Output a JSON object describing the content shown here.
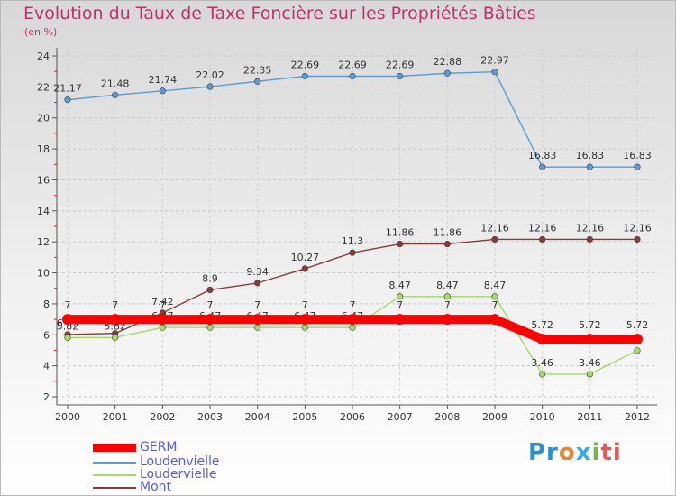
{
  "chart_data": {
    "type": "line",
    "title": "Evolution du Taux de Taxe Foncière sur les Propriétés Bâties",
    "subtitle": "(en %)",
    "x": [
      "2000",
      "2001",
      "2002",
      "2003",
      "2004",
      "2005",
      "2006",
      "2007",
      "2008",
      "2009",
      "2010",
      "2011",
      "2012"
    ],
    "ylim": [
      2,
      24
    ],
    "yticks": [
      2,
      4,
      6,
      8,
      10,
      12,
      14,
      16,
      18,
      20,
      22,
      24
    ],
    "series": [
      {
        "name": "Loudenvielle",
        "color": "#5b9bd5",
        "values": [
          21.17,
          21.48,
          21.74,
          22.02,
          22.35,
          22.69,
          22.69,
          22.69,
          22.88,
          22.97,
          16.83,
          16.83,
          16.83
        ],
        "labels": [
          "21.17",
          "21.48",
          "21.74",
          "22.02",
          "22.35",
          "22.69",
          "22.69",
          "22.69",
          "22.88",
          "22.97",
          "16.83",
          "16.83",
          "16.83"
        ]
      },
      {
        "name": "Mont",
        "color": "#8b3a3a",
        "values": [
          6.02,
          6.09,
          7.42,
          8.9,
          9.34,
          10.27,
          11.3,
          11.86,
          11.86,
          12.16,
          12.16,
          12.16,
          12.16
        ],
        "labels": [
          "6.02",
          "6.09",
          "7.42",
          "8.9",
          "9.34",
          "10.27",
          "11.3",
          "11.86",
          "11.86",
          "12.16",
          "12.16",
          "12.16",
          "12.16"
        ]
      },
      {
        "name": "Loudervielle",
        "color": "#a6d96a",
        "values": [
          5.82,
          5.82,
          6.47,
          6.47,
          6.47,
          6.47,
          6.47,
          8.47,
          8.47,
          8.47,
          3.46,
          3.46,
          4.98
        ],
        "labels": [
          "5.82",
          "5.82",
          "6.47",
          "6.47",
          "6.47",
          "6.47",
          "6.47",
          "8.47",
          "8.47",
          "8.47",
          "3.46",
          "3.46",
          ""
        ]
      },
      {
        "name": "GERM",
        "color": "#ff0000",
        "values": [
          7,
          7,
          7,
          7,
          7,
          7,
          7,
          7,
          7,
          7,
          5.72,
          5.72,
          5.72
        ],
        "labels": [
          "7",
          "7",
          "7",
          "7",
          "7",
          "7",
          "7",
          "7",
          "7",
          "7",
          "5.72",
          "5.72",
          "5.72"
        ]
      }
    ],
    "legend": [
      "GERM",
      "Loudenvielle",
      "Loudervielle",
      "Mont"
    ]
  },
  "logo": {
    "p1": "Pr",
    "p2": "o",
    "p3": "x",
    "p4": "i",
    "p5": "ti"
  }
}
